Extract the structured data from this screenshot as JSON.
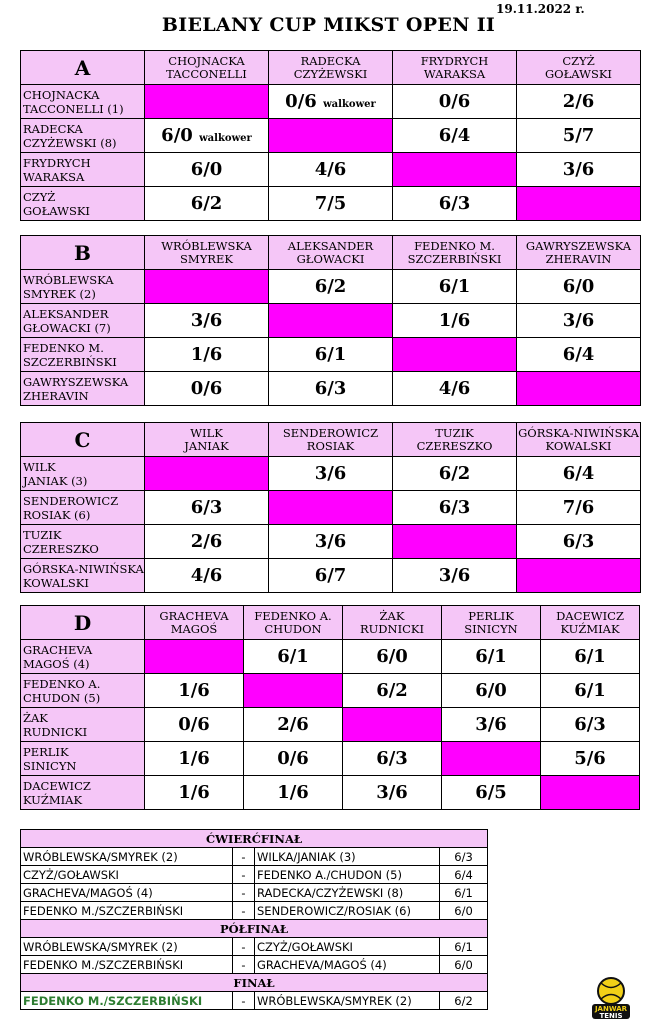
{
  "header": {
    "date": "19.11.2022 r.",
    "title": "BIELANY CUP MIKST OPEN II"
  },
  "groups": [
    {
      "letter": "A",
      "cols": [
        [
          "CHOJNACKA",
          "TACCONELLI"
        ],
        [
          "RADECKA",
          "CZYŻEWSKI"
        ],
        [
          "FRYDRYCH",
          "WARAKSA"
        ],
        [
          "CZYŻ",
          "GOŁAWSKI"
        ]
      ],
      "rows": [
        [
          "CHOJNACKA",
          "TACCONELLI (1)"
        ],
        [
          "RADECKA",
          "CZYŻEWSKI (8)"
        ],
        [
          "FRYDRYCH",
          "WARAKSA"
        ],
        [
          "CZYŻ",
          "GOŁAWSKI"
        ]
      ],
      "scores": [
        [
          "",
          "0/6",
          "0/6",
          "2/6"
        ],
        [
          "6/0",
          "",
          "6/4",
          "5/7"
        ],
        [
          "6/0",
          "4/6",
          "",
          "3/6"
        ],
        [
          "6/2",
          "7/5",
          "6/3",
          ""
        ]
      ],
      "notes": [
        [
          "",
          "walkower",
          "",
          ""
        ],
        [
          "walkower",
          "",
          "",
          ""
        ],
        [
          "",
          "",
          "",
          ""
        ],
        [
          "",
          "",
          "",
          ""
        ]
      ]
    },
    {
      "letter": "B",
      "cols": [
        [
          "WRÓBLEWSKA",
          "SMYREK"
        ],
        [
          "ALEKSANDER",
          "GŁOWACKI"
        ],
        [
          "FEDENKO M.",
          "SZCZERBIŃSKI"
        ],
        [
          "GAWRYSZEWSKA",
          "ZHERAVIN"
        ]
      ],
      "rows": [
        [
          "WRÓBLEWSKA",
          "SMYREK (2)"
        ],
        [
          "ALEKSANDER",
          "GŁOWACKI (7)"
        ],
        [
          "FEDENKO M.",
          "SZCZERBIŃSKI"
        ],
        [
          "GAWRYSZEWSKA",
          "ZHERAVIN"
        ]
      ],
      "scores": [
        [
          "",
          "6/2",
          "6/1",
          "6/0"
        ],
        [
          "3/6",
          "",
          "1/6",
          "3/6"
        ],
        [
          "1/6",
          "6/1",
          "",
          "6/4"
        ],
        [
          "0/6",
          "6/3",
          "4/6",
          ""
        ]
      ],
      "notes": [
        [
          "",
          "",
          "",
          ""
        ],
        [
          "",
          "",
          "",
          ""
        ],
        [
          "",
          "",
          "",
          ""
        ],
        [
          "",
          "",
          "",
          ""
        ]
      ]
    },
    {
      "letter": "C",
      "cols": [
        [
          "WILK",
          "JANIAK"
        ],
        [
          "SENDEROWICZ",
          "ROSIAK"
        ],
        [
          "TUZIK",
          "CZERESZKO"
        ],
        [
          "GÓRSKA-NIWIŃSKA",
          "KOWALSKI"
        ]
      ],
      "rows": [
        [
          "WILK",
          "JANIAK (3)"
        ],
        [
          "SENDEROWICZ",
          "ROSIAK (6)"
        ],
        [
          "TUZIK",
          "CZERESZKO"
        ],
        [
          "GÓRSKA-NIWIŃSKA",
          "KOWALSKI"
        ]
      ],
      "scores": [
        [
          "",
          "3/6",
          "6/2",
          "6/4"
        ],
        [
          "6/3",
          "",
          "6/3",
          "7/6"
        ],
        [
          "2/6",
          "3/6",
          "",
          "6/3"
        ],
        [
          "4/6",
          "6/7",
          "3/6",
          ""
        ]
      ],
      "notes": [
        [
          "",
          "",
          "",
          ""
        ],
        [
          "",
          "",
          "",
          ""
        ],
        [
          "",
          "",
          "",
          ""
        ],
        [
          "",
          "",
          "",
          ""
        ]
      ]
    },
    {
      "letter": "D",
      "cols": [
        [
          "GRACHEVA",
          "MAGOŚ"
        ],
        [
          "FEDENKO A.",
          "CHUDON"
        ],
        [
          "ŻAK",
          "RUDNICKI"
        ],
        [
          "PERLIK",
          "SINICYN"
        ],
        [
          "DACEWICZ",
          "KUŹMIAK"
        ]
      ],
      "rows": [
        [
          "GRACHEVA",
          "MAGOŚ (4)"
        ],
        [
          "FEDENKO A.",
          "CHUDON (5)"
        ],
        [
          "ŻAK",
          "RUDNICKI"
        ],
        [
          "PERLIK",
          "SINICYN"
        ],
        [
          "DACEWICZ",
          "KUŹMIAK"
        ]
      ],
      "scores": [
        [
          "",
          "6/1",
          "6/0",
          "6/1",
          "6/1"
        ],
        [
          "1/6",
          "",
          "6/2",
          "6/0",
          "6/1"
        ],
        [
          "0/6",
          "2/6",
          "",
          "3/6",
          "6/3"
        ],
        [
          "1/6",
          "0/6",
          "6/3",
          "",
          "5/6"
        ],
        [
          "1/6",
          "1/6",
          "3/6",
          "6/5",
          ""
        ]
      ],
      "notes": [
        [
          "",
          "",
          "",
          "",
          ""
        ],
        [
          "",
          "",
          "",
          "",
          ""
        ],
        [
          "",
          "",
          "",
          "",
          ""
        ],
        [
          "",
          "",
          "",
          "",
          ""
        ],
        [
          "",
          "",
          "",
          "",
          ""
        ]
      ]
    }
  ],
  "knockout": [
    {
      "stage": "ĆWIERĆFINAŁ",
      "matches": [
        {
          "p1": "WRÓBLEWSKA/SMYREK (2)",
          "dash": "-",
          "p2": "WILKA/JANIAK (3)",
          "score": "6/3"
        },
        {
          "p1": "CZYŻ/GOŁAWSKI",
          "dash": "-",
          "p2": "FEDENKO A./CHUDON (5)",
          "score": "6/4"
        },
        {
          "p1": "GRACHEVA/MAGOŚ (4)",
          "dash": "-",
          "p2": "RADECKA/CZYŻEWSKI (8)",
          "score": "6/1"
        },
        {
          "p1": "FEDENKO M./SZCZERBIŃSKI",
          "dash": "-",
          "p2": "SENDEROWICZ/ROSIAK (6)",
          "score": "6/0"
        }
      ]
    },
    {
      "stage": "PÓŁFINAŁ",
      "matches": [
        {
          "p1": "WRÓBLEWSKA/SMYREK (2)",
          "dash": "-",
          "p2": "CZYŻ/GOŁAWSKI",
          "score": "6/1"
        },
        {
          "p1": "FEDENKO M./SZCZERBIŃSKI",
          "dash": "-",
          "p2": "GRACHEVA/MAGOŚ (4)",
          "score": "6/0"
        }
      ]
    },
    {
      "stage": "FINAŁ",
      "matches": [
        {
          "p1": "FEDENKO M./SZCZERBIŃSKI",
          "dash": "-",
          "p2": "WRÓBLEWSKA/SMYREK (2)",
          "score": "6/2",
          "winner": true
        }
      ]
    }
  ],
  "logo": {
    "line1": "JANWAR",
    "line2": "TENIS",
    "colors": {
      "ball": "#f2d017",
      "ring": "#111111"
    }
  },
  "colors": {
    "header_bg": "#f5c6f7",
    "diagonal": "#ff00ff",
    "winner": "#2e7d32"
  }
}
